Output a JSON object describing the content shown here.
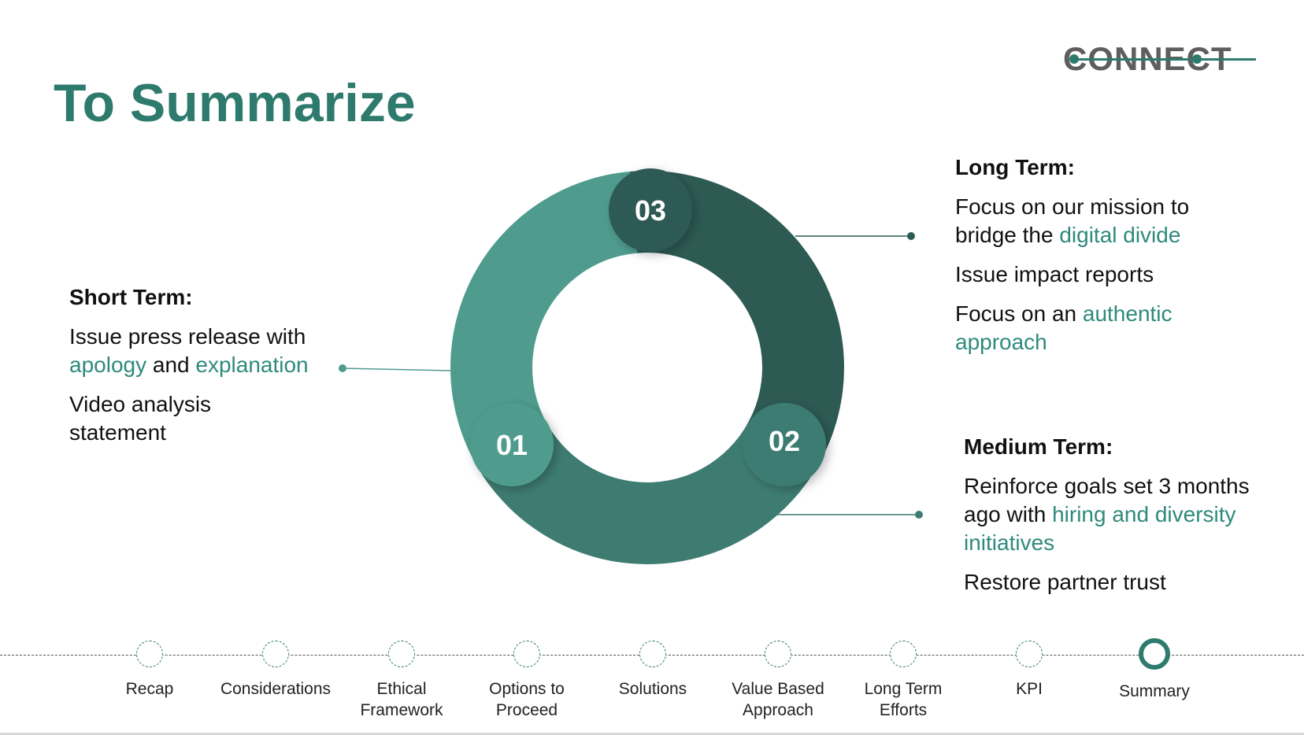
{
  "slide": {
    "title": "To Summarize",
    "logo": "CONNECT"
  },
  "colors": {
    "accent": "#2e7a6d",
    "highlight": "#2e8a7c",
    "segment_01": "#4f9c8f",
    "segment_02": "#3e7c72",
    "segment_03": "#2e5a54"
  },
  "donut": {
    "segments": [
      {
        "number": "01"
      },
      {
        "number": "02"
      },
      {
        "number": "03"
      }
    ]
  },
  "short_term": {
    "heading": "Short Term:",
    "item1_a": "Issue press release with ",
    "item1_b": "apology",
    "item1_c": " and ",
    "item1_d": "explanation",
    "item2": "Video analysis statement"
  },
  "long_term": {
    "heading": "Long Term:",
    "item1_a": "Focus on our mission to bridge the ",
    "item1_b": "digital divide",
    "item2": "Issue impact reports",
    "item3_a": "Focus on an ",
    "item3_b": "authentic approach"
  },
  "medium_term": {
    "heading": "Medium Term:",
    "item1_a": "Reinforce goals set 3 months ago with ",
    "item1_b": "hiring and diversity initiatives",
    "item2": "Restore partner trust"
  },
  "nav": {
    "items": [
      {
        "label": "Recap"
      },
      {
        "label": "Considerations"
      },
      {
        "label": "Ethical\nFramework"
      },
      {
        "label": "Options to\nProceed"
      },
      {
        "label": "Solutions"
      },
      {
        "label": "Value Based\nApproach"
      },
      {
        "label": "Long Term\nEfforts"
      },
      {
        "label": "KPI"
      },
      {
        "label": "Summary"
      }
    ],
    "active": "Summary"
  }
}
